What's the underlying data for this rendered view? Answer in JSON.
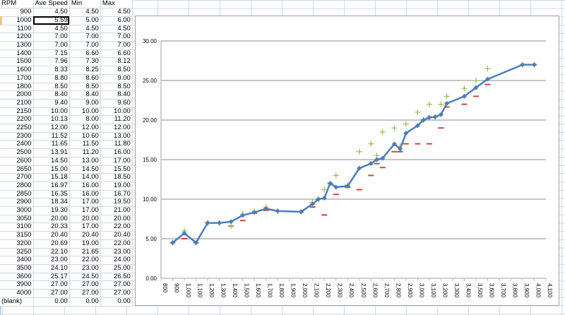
{
  "sheet": {
    "headers": [
      "RPM",
      "Ave Speed",
      "Min",
      "Max"
    ],
    "selected_cell": "1000 / Ave Speed",
    "rows": [
      [
        "900",
        "4.50",
        "4.50",
        "4.50"
      ],
      [
        "1000",
        "5.69",
        "5.00",
        "6.00"
      ],
      [
        "1100",
        "4.50",
        "4.50",
        "4.50"
      ],
      [
        "1200",
        "7.00",
        "7.00",
        "7.00"
      ],
      [
        "1300",
        "7.00",
        "7.00",
        "7.00"
      ],
      [
        "1400",
        "7.15",
        "6.60",
        "6.60"
      ],
      [
        "1500",
        "7.96",
        "7.30",
        "8.12"
      ],
      [
        "1600",
        "8.33",
        "8.25",
        "8.50"
      ],
      [
        "1700",
        "8.80",
        "8.60",
        "9.00"
      ],
      [
        "1800",
        "8.50",
        "8.50",
        "8.50"
      ],
      [
        "2000",
        "8.40",
        "8.40",
        "8.40"
      ],
      [
        "2100",
        "9.40",
        "9.00",
        "9.60"
      ],
      [
        "2150",
        "10.00",
        "10.00",
        "10.00"
      ],
      [
        "2200",
        "10.13",
        "8.00",
        "11.20"
      ],
      [
        "2250",
        "12.00",
        "12.00",
        "12.00"
      ],
      [
        "2300",
        "11.52",
        "10.60",
        "13.00"
      ],
      [
        "2400",
        "11.65",
        "11.50",
        "11.80"
      ],
      [
        "2500",
        "13.91",
        "11.20",
        "16.00"
      ],
      [
        "2600",
        "14.50",
        "13.00",
        "17.00"
      ],
      [
        "2650",
        "15.00",
        "14.50",
        "15.50"
      ],
      [
        "2700",
        "15.18",
        "14.00",
        "18.50"
      ],
      [
        "2800",
        "16.97",
        "16.00",
        "19.00"
      ],
      [
        "2850",
        "16.35",
        "16.00",
        "16.70"
      ],
      [
        "2900",
        "18.34",
        "17.00",
        "19.50"
      ],
      [
        "3000",
        "19.30",
        "17.00",
        "21.00"
      ],
      [
        "3050",
        "20.00",
        "20.00",
        "20.00"
      ],
      [
        "3100",
        "20.33",
        "17.00",
        "22.00"
      ],
      [
        "3150",
        "20.40",
        "20.40",
        "20.40"
      ],
      [
        "3200",
        "20.69",
        "19.00",
        "22.00"
      ],
      [
        "3250",
        "22.10",
        "21.65",
        "23.00"
      ],
      [
        "3400",
        "23.00",
        "22.00",
        "24.00"
      ],
      [
        "3500",
        "24.10",
        "23.00",
        "25.00"
      ],
      [
        "3600",
        "25.17",
        "24.50",
        "26.50"
      ],
      [
        "3900",
        "27.00",
        "27.00",
        "27.00"
      ],
      [
        "4000",
        "27.00",
        "27.00",
        "27.00"
      ],
      [
        "(blank)",
        "0.00",
        "0.00",
        "0.00"
      ]
    ]
  },
  "chart_data": {
    "type": "line",
    "x": [
      900,
      1000,
      1100,
      1200,
      1300,
      1400,
      1500,
      1600,
      1700,
      1800,
      2000,
      2100,
      2150,
      2200,
      2250,
      2300,
      2400,
      2500,
      2600,
      2650,
      2700,
      2800,
      2850,
      2900,
      3000,
      3050,
      3100,
      3150,
      3200,
      3250,
      3400,
      3500,
      3600,
      3900,
      4000
    ],
    "series": [
      {
        "key": "ave",
        "style": "line-diamond",
        "color": "#4a7ebb",
        "values": [
          4.5,
          5.69,
          4.5,
          7.0,
          7.0,
          7.15,
          7.96,
          8.33,
          8.8,
          8.5,
          8.4,
          9.4,
          10.0,
          10.13,
          12.0,
          11.52,
          11.65,
          13.91,
          14.5,
          15.0,
          15.18,
          16.97,
          16.35,
          18.34,
          19.3,
          20.0,
          20.33,
          20.4,
          20.69,
          22.1,
          23.0,
          24.1,
          25.17,
          27.0,
          27.0
        ]
      },
      {
        "key": "min",
        "style": "dash-marker",
        "color": "#be4b48",
        "values": [
          4.5,
          5.0,
          4.5,
          7.0,
          7.0,
          6.6,
          7.3,
          8.25,
          8.6,
          8.5,
          8.4,
          9.0,
          10.0,
          8.0,
          12.0,
          10.6,
          11.5,
          11.2,
          13.0,
          14.5,
          14.0,
          16.0,
          16.0,
          17.0,
          17.0,
          20.0,
          17.0,
          20.4,
          19.0,
          21.65,
          22.0,
          23.0,
          24.5,
          27.0,
          27.0
        ]
      },
      {
        "key": "max",
        "style": "plus-marker",
        "color": "#98b954",
        "values": [
          4.5,
          6.0,
          4.5,
          7.0,
          7.0,
          6.6,
          8.12,
          8.5,
          9.0,
          8.5,
          8.4,
          9.6,
          10.0,
          11.2,
          12.0,
          13.0,
          11.8,
          16.0,
          17.0,
          15.5,
          18.5,
          19.0,
          16.7,
          19.5,
          21.0,
          20.0,
          22.0,
          20.4,
          22.0,
          23.0,
          24.0,
          25.0,
          26.5,
          27.0,
          27.0
        ]
      }
    ],
    "xlim": [
      800,
      4100
    ],
    "x_tick_step": 100,
    "x_tick_format": "thousands-comma",
    "ylim": [
      0,
      30
    ],
    "y_ticks": [
      "0.00",
      "5.00",
      "10.00",
      "15.00",
      "20.00",
      "25.00",
      "30.00"
    ],
    "grid": "horizontal",
    "legend": "none"
  }
}
